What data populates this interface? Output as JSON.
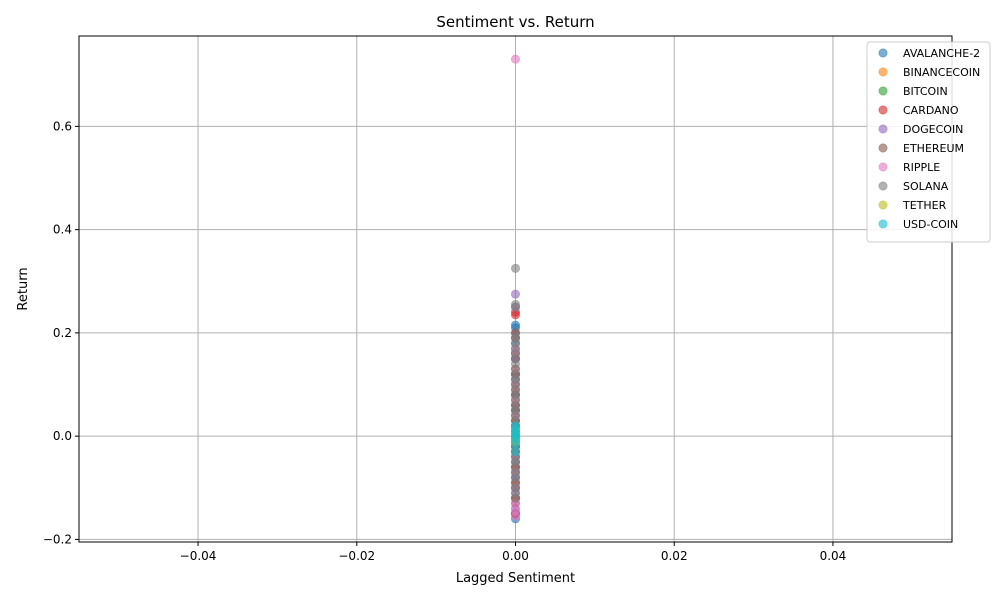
{
  "chart_data": {
    "type": "scatter",
    "title": "Sentiment vs. Return",
    "xlabel": "Lagged Sentiment",
    "ylabel": "Return",
    "xlim": [
      -0.055,
      0.055
    ],
    "ylim": [
      -0.205,
      0.775
    ],
    "x_ticks": [
      -0.04,
      -0.02,
      0.0,
      0.02,
      0.04
    ],
    "x_tick_labels": [
      "−0.04",
      "−0.02",
      "0.00",
      "0.02",
      "0.04"
    ],
    "y_ticks": [
      -0.2,
      0.0,
      0.2,
      0.4,
      0.6
    ],
    "y_tick_labels": [
      "−0.2",
      "0.0",
      "0.2",
      "0.4",
      "0.6"
    ],
    "grid": true,
    "legend_position": "top-right",
    "series": [
      {
        "name": "AVALANCHE-2",
        "color": "#1f77b4",
        "x": [
          0,
          0,
          0,
          0,
          0,
          0,
          0,
          0,
          0,
          0,
          0,
          0,
          0,
          0,
          0,
          0,
          0,
          0,
          0,
          0
        ],
        "y": [
          -0.16,
          -0.15,
          -0.12,
          -0.1,
          -0.08,
          -0.06,
          -0.04,
          -0.02,
          0.0,
          0.02,
          0.04,
          0.06,
          0.08,
          0.1,
          0.12,
          0.15,
          0.18,
          0.2,
          0.21,
          0.215
        ]
      },
      {
        "name": "BINANCECOIN",
        "color": "#ff7f0e",
        "x": [
          0,
          0,
          0,
          0,
          0,
          0,
          0,
          0,
          0,
          0,
          0,
          0
        ],
        "y": [
          -0.12,
          -0.09,
          -0.06,
          -0.03,
          -0.01,
          0.0,
          0.02,
          0.04,
          0.07,
          0.1,
          0.13,
          0.16
        ]
      },
      {
        "name": "BITCOIN",
        "color": "#2ca02c",
        "x": [
          0,
          0,
          0,
          0,
          0,
          0,
          0,
          0,
          0,
          0
        ],
        "y": [
          -0.1,
          -0.07,
          -0.05,
          -0.03,
          -0.01,
          0.01,
          0.03,
          0.05,
          0.08,
          0.11
        ]
      },
      {
        "name": "CARDANO",
        "color": "#d62728",
        "x": [
          0,
          0,
          0,
          0,
          0,
          0,
          0,
          0,
          0,
          0,
          0,
          0,
          0,
          0
        ],
        "y": [
          -0.15,
          -0.12,
          -0.09,
          -0.06,
          -0.03,
          0.0,
          0.03,
          0.06,
          0.09,
          0.12,
          0.15,
          0.2,
          0.235,
          0.24
        ]
      },
      {
        "name": "DOGECOIN",
        "color": "#9467bd",
        "x": [
          0,
          0,
          0,
          0,
          0,
          0,
          0,
          0,
          0,
          0,
          0,
          0,
          0,
          0
        ],
        "y": [
          -0.14,
          -0.11,
          -0.08,
          -0.05,
          -0.02,
          0.0,
          0.02,
          0.05,
          0.08,
          0.11,
          0.15,
          0.19,
          0.25,
          0.275
        ]
      },
      {
        "name": "ETHEREUM",
        "color": "#8c564b",
        "x": [
          0,
          0,
          0,
          0,
          0,
          0,
          0,
          0,
          0,
          0,
          0,
          0
        ],
        "y": [
          -0.13,
          -0.1,
          -0.07,
          -0.04,
          -0.02,
          0.0,
          0.02,
          0.05,
          0.08,
          0.12,
          0.16,
          0.19
        ]
      },
      {
        "name": "RIPPLE",
        "color": "#e377c2",
        "x": [
          0,
          0,
          0,
          0,
          0,
          0,
          0,
          0,
          0,
          0,
          0,
          0,
          0,
          0,
          0
        ],
        "y": [
          -0.155,
          -0.145,
          -0.13,
          -0.1,
          -0.07,
          -0.04,
          -0.01,
          0.01,
          0.04,
          0.07,
          0.1,
          0.13,
          0.165,
          0.17,
          0.73
        ]
      },
      {
        "name": "SOLANA",
        "color": "#7f7f7f",
        "x": [
          0,
          0,
          0,
          0,
          0,
          0,
          0,
          0,
          0,
          0,
          0,
          0,
          0,
          0,
          0,
          0,
          0,
          0,
          0,
          0,
          0,
          0,
          0,
          0,
          0,
          0,
          0,
          0,
          0,
          0,
          0,
          0,
          0,
          0,
          0,
          0
        ],
        "y": [
          -0.12,
          -0.11,
          -0.1,
          -0.09,
          -0.08,
          -0.07,
          -0.06,
          -0.05,
          -0.04,
          -0.03,
          -0.02,
          -0.01,
          0.0,
          0.01,
          0.02,
          0.03,
          0.04,
          0.05,
          0.06,
          0.07,
          0.08,
          0.09,
          0.1,
          0.11,
          0.12,
          0.13,
          0.14,
          0.15,
          0.16,
          0.17,
          0.18,
          0.19,
          0.2,
          0.25,
          0.255,
          0.325
        ]
      },
      {
        "name": "TETHER",
        "color": "#bcbd22",
        "x": [
          0,
          0,
          0,
          0,
          0,
          0
        ],
        "y": [
          -0.01,
          -0.005,
          0.0,
          0.0,
          0.005,
          0.01
        ]
      },
      {
        "name": "USD-COIN",
        "color": "#17becf",
        "x": [
          0,
          0,
          0,
          0,
          0,
          0,
          0,
          0
        ],
        "y": [
          -0.03,
          -0.015,
          -0.005,
          0.0,
          0.003,
          0.008,
          0.015,
          0.02
        ]
      }
    ]
  }
}
